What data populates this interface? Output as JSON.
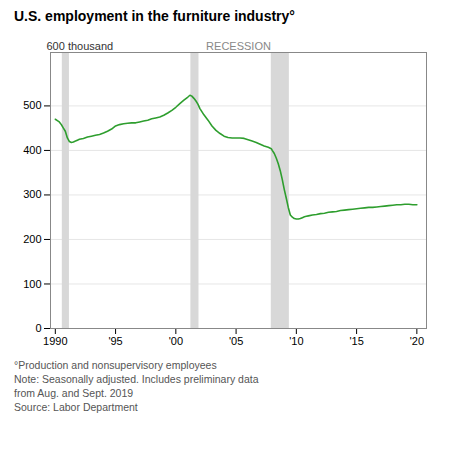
{
  "chart_data": {
    "type": "line",
    "title": "U.S. employment in the furniture industry°",
    "ylabel": "600 thousand",
    "x": [
      1990.0,
      1990.17,
      1990.33,
      1990.5,
      1990.67,
      1990.83,
      1991.0,
      1991.17,
      1991.33,
      1991.5,
      1991.67,
      1991.83,
      1992.0,
      1992.33,
      1992.67,
      1993.0,
      1993.33,
      1993.67,
      1994.0,
      1994.33,
      1994.67,
      1995.0,
      1995.33,
      1995.67,
      1996.0,
      1996.33,
      1996.67,
      1997.0,
      1997.33,
      1997.67,
      1998.0,
      1998.33,
      1998.67,
      1999.0,
      1999.33,
      1999.67,
      2000.0,
      2000.33,
      2000.67,
      2001.0,
      2001.17,
      2001.33,
      2001.5,
      2001.67,
      2001.83,
      2002.0,
      2002.33,
      2002.67,
      2003.0,
      2003.33,
      2003.67,
      2004.0,
      2004.33,
      2004.67,
      2005.0,
      2005.33,
      2005.67,
      2006.0,
      2006.33,
      2006.67,
      2007.0,
      2007.33,
      2007.67,
      2007.92,
      2008.0,
      2008.17,
      2008.33,
      2008.5,
      2008.67,
      2008.83,
      2009.0,
      2009.17,
      2009.33,
      2009.5,
      2009.67,
      2009.83,
      2010.0,
      2010.17,
      2010.33,
      2010.5,
      2010.67,
      2010.83,
      2011.0,
      2011.33,
      2011.67,
      2012.0,
      2012.33,
      2012.67,
      2013.0,
      2013.33,
      2013.67,
      2014.0,
      2014.33,
      2014.67,
      2015.0,
      2015.33,
      2015.67,
      2016.0,
      2016.33,
      2016.67,
      2017.0,
      2017.33,
      2017.67,
      2018.0,
      2018.33,
      2018.67,
      2019.0,
      2019.33,
      2019.67,
      2020.0
    ],
    "values": [
      470,
      467,
      464,
      458,
      450,
      443,
      428,
      420,
      418,
      419,
      421,
      423,
      425,
      427,
      430,
      432,
      434,
      436,
      439,
      443,
      448,
      455,
      458,
      460,
      461,
      462,
      462,
      464,
      466,
      468,
      471,
      473,
      475,
      479,
      484,
      490,
      497,
      505,
      513,
      520,
      524,
      522,
      517,
      511,
      504,
      494,
      480,
      468,
      455,
      445,
      438,
      432,
      429,
      428,
      428,
      428,
      427,
      424,
      421,
      418,
      414,
      410,
      407,
      404,
      400,
      393,
      383,
      370,
      354,
      335,
      312,
      292,
      272,
      255,
      250,
      247,
      246,
      246,
      247,
      249,
      251,
      252,
      253,
      255,
      256,
      258,
      259,
      261,
      262,
      263,
      265,
      266,
      267,
      268,
      269,
      270,
      271,
      272,
      272,
      273,
      274,
      275,
      276,
      277,
      278,
      278,
      279,
      279,
      278,
      278
    ],
    "color": "#2e9e2e",
    "xlim": [
      1989.6,
      2020.8
    ],
    "ylim": [
      0,
      620
    ],
    "xticks": [
      1990,
      {
        "value": 1995,
        "label": "'95"
      },
      {
        "value": 2000,
        "label": "'00"
      },
      {
        "value": 2005,
        "label": "'05"
      },
      {
        "value": 2010,
        "label": "'10"
      },
      {
        "value": 2015,
        "label": "'15"
      },
      {
        "value": 2020,
        "label": "'20"
      }
    ],
    "yticks": [
      0,
      100,
      200,
      300,
      400,
      500
    ],
    "grid": true,
    "recession_periods": [
      [
        1990.58,
        1991.17
      ],
      [
        2001.25,
        2001.92
      ],
      [
        2007.92,
        2009.42
      ]
    ],
    "recession_color": "#d8d8d8",
    "annotations": [
      {
        "text": "RECESSION"
      }
    ],
    "footnotes": [
      "°Production and nonsupervisory employees",
      "Note: Seasonally adjusted. Includes preliminary data",
      "from Aug. and Sept. 2019",
      "Source: Labor Department"
    ]
  }
}
